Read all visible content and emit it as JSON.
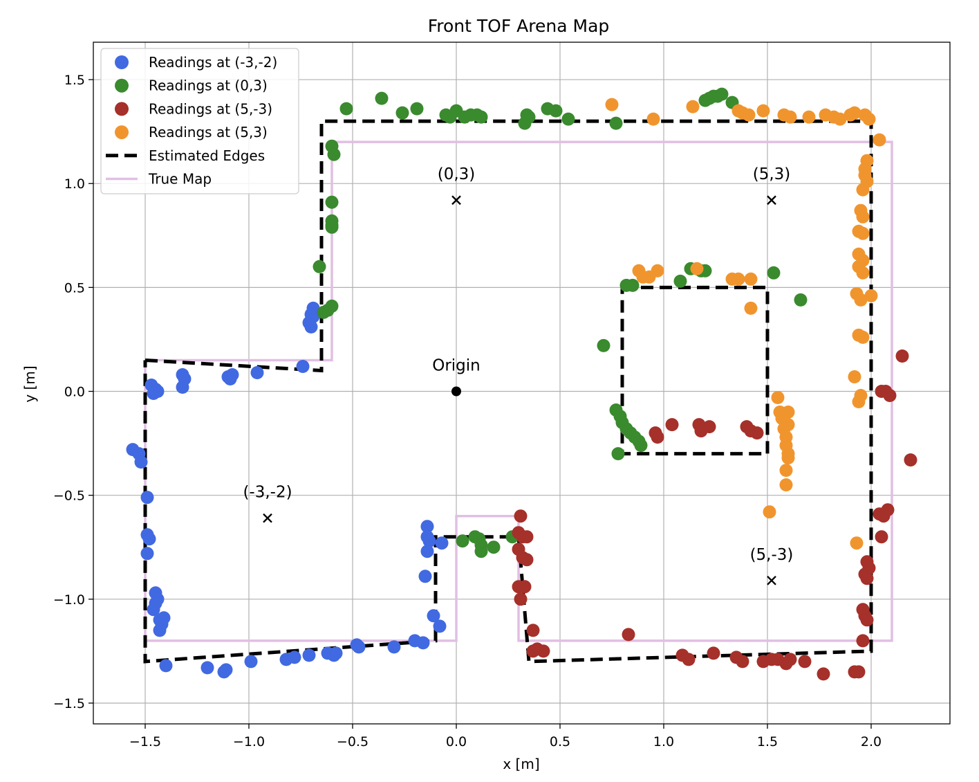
{
  "chart_data": {
    "type": "scatter",
    "title": "Front TOF Arena Map",
    "xlabel": "x [m]",
    "ylabel": "y [m]",
    "xlim": [
      -1.75,
      2.38
    ],
    "ylim": [
      -1.6,
      1.68
    ],
    "x_ticks": [
      {
        "value": -1.5,
        "label": "−1.5"
      },
      {
        "value": -1.0,
        "label": "−1.0"
      },
      {
        "value": -0.5,
        "label": "−0.5"
      },
      {
        "value": 0.0,
        "label": "0.0"
      },
      {
        "value": 0.5,
        "label": "0.5"
      },
      {
        "value": 1.0,
        "label": "1.0"
      },
      {
        "value": 1.5,
        "label": "1.5"
      },
      {
        "value": 2.0,
        "label": "2.0"
      }
    ],
    "y_ticks": [
      {
        "value": -1.5,
        "label": "−1.5"
      },
      {
        "value": -1.0,
        "label": "−1.0"
      },
      {
        "value": -0.5,
        "label": "−0.5"
      },
      {
        "value": 0.0,
        "label": "0.0"
      },
      {
        "value": 0.5,
        "label": "0.5"
      },
      {
        "value": 1.0,
        "label": "1.0"
      },
      {
        "value": 1.5,
        "label": "1.5"
      }
    ],
    "grid": true,
    "legend_position": "top-left",
    "series": [
      {
        "name": "Readings at (-3,-2)",
        "kind": "scatter",
        "color": "#4169e1",
        "points": [
          [
            -1.47,
            0.03
          ],
          [
            -1.45,
            0.01
          ],
          [
            -1.46,
            -0.01
          ],
          [
            -1.44,
            0.0
          ],
          [
            -1.32,
            0.08
          ],
          [
            -1.31,
            0.06
          ],
          [
            -1.32,
            0.02
          ],
          [
            -1.1,
            0.07
          ],
          [
            -1.08,
            0.08
          ],
          [
            -1.09,
            0.06
          ],
          [
            -0.96,
            0.09
          ],
          [
            -0.74,
            0.12
          ],
          [
            -0.69,
            0.4
          ],
          [
            -0.7,
            0.37
          ],
          [
            -0.71,
            0.33
          ],
          [
            -0.7,
            0.31
          ],
          [
            -0.69,
            0.36
          ],
          [
            -1.56,
            -0.28
          ],
          [
            -1.53,
            -0.3
          ],
          [
            -1.52,
            -0.34
          ],
          [
            -1.49,
            -0.51
          ],
          [
            -1.49,
            -0.69
          ],
          [
            -1.48,
            -0.71
          ],
          [
            -1.49,
            -0.78
          ],
          [
            -1.45,
            -0.97
          ],
          [
            -1.44,
            -1.0
          ],
          [
            -1.45,
            -1.02
          ],
          [
            -1.46,
            -1.05
          ],
          [
            -1.43,
            -1.1
          ],
          [
            -1.42,
            -1.12
          ],
          [
            -1.41,
            -1.09
          ],
          [
            -1.43,
            -1.15
          ],
          [
            -1.4,
            -1.32
          ],
          [
            -1.2,
            -1.33
          ],
          [
            -1.12,
            -1.35
          ],
          [
            -1.11,
            -1.34
          ],
          [
            -0.99,
            -1.3
          ],
          [
            -0.82,
            -1.29
          ],
          [
            -0.78,
            -1.28
          ],
          [
            -0.71,
            -1.27
          ],
          [
            -0.62,
            -1.26
          ],
          [
            -0.59,
            -1.27
          ],
          [
            -0.58,
            -1.26
          ],
          [
            -0.48,
            -1.22
          ],
          [
            -0.47,
            -1.23
          ],
          [
            -0.3,
            -1.23
          ],
          [
            -0.2,
            -1.2
          ],
          [
            -0.16,
            -1.21
          ],
          [
            -0.14,
            -0.65
          ],
          [
            -0.14,
            -0.7
          ],
          [
            -0.13,
            -0.72
          ],
          [
            -0.14,
            -0.77
          ],
          [
            -0.15,
            -0.89
          ],
          [
            -0.11,
            -1.08
          ],
          [
            -0.07,
            -0.73
          ],
          [
            -0.08,
            -1.13
          ]
        ]
      },
      {
        "name": "Readings at (0,3)",
        "kind": "scatter",
        "color": "#3a8a2e",
        "points": [
          [
            -0.53,
            1.36
          ],
          [
            -0.36,
            1.41
          ],
          [
            -0.26,
            1.34
          ],
          [
            -0.19,
            1.36
          ],
          [
            -0.05,
            1.33
          ],
          [
            -0.03,
            1.32
          ],
          [
            0.0,
            1.35
          ],
          [
            0.04,
            1.32
          ],
          [
            0.07,
            1.33
          ],
          [
            0.1,
            1.33
          ],
          [
            0.12,
            1.32
          ],
          [
            0.33,
            1.29
          ],
          [
            0.34,
            1.33
          ],
          [
            0.35,
            1.32
          ],
          [
            0.44,
            1.36
          ],
          [
            0.48,
            1.35
          ],
          [
            0.54,
            1.31
          ],
          [
            0.77,
            1.29
          ],
          [
            1.2,
            1.4
          ],
          [
            1.22,
            1.41
          ],
          [
            1.24,
            1.42
          ],
          [
            1.26,
            1.42
          ],
          [
            1.28,
            1.43
          ],
          [
            1.33,
            1.39
          ],
          [
            -0.6,
            1.18
          ],
          [
            -0.59,
            1.14
          ],
          [
            -0.6,
            0.91
          ],
          [
            -0.6,
            0.82
          ],
          [
            -0.6,
            0.8
          ],
          [
            -0.6,
            0.79
          ],
          [
            -0.66,
            0.6
          ],
          [
            -0.6,
            0.41
          ],
          [
            -0.62,
            0.39
          ],
          [
            -0.64,
            0.38
          ],
          [
            0.71,
            0.22
          ],
          [
            0.82,
            0.51
          ],
          [
            0.85,
            0.51
          ],
          [
            1.08,
            0.53
          ],
          [
            1.13,
            0.59
          ],
          [
            1.18,
            0.58
          ],
          [
            1.2,
            0.58
          ],
          [
            1.53,
            0.57
          ],
          [
            1.66,
            0.44
          ],
          [
            0.77,
            -0.09
          ],
          [
            0.79,
            -0.12
          ],
          [
            0.8,
            -0.15
          ],
          [
            0.82,
            -0.18
          ],
          [
            0.84,
            -0.2
          ],
          [
            0.86,
            -0.22
          ],
          [
            0.88,
            -0.24
          ],
          [
            0.89,
            -0.26
          ],
          [
            0.78,
            -0.3
          ],
          [
            0.03,
            -0.72
          ],
          [
            0.09,
            -0.7
          ],
          [
            0.11,
            -0.71
          ],
          [
            0.12,
            -0.74
          ],
          [
            0.12,
            -0.77
          ],
          [
            0.18,
            -0.75
          ],
          [
            0.27,
            -0.7
          ]
        ]
      },
      {
        "name": "Readings at (5,-3)",
        "kind": "scatter",
        "color": "#a6302a",
        "points": [
          [
            0.31,
            -0.6
          ],
          [
            0.3,
            -0.68
          ],
          [
            0.32,
            -0.7
          ],
          [
            0.34,
            -0.7
          ],
          [
            0.3,
            -0.76
          ],
          [
            0.32,
            -0.8
          ],
          [
            0.34,
            -0.81
          ],
          [
            0.3,
            -0.94
          ],
          [
            0.31,
            -1.0
          ],
          [
            0.33,
            -0.94
          ],
          [
            0.37,
            -1.15
          ],
          [
            0.37,
            -1.25
          ],
          [
            0.39,
            -1.24
          ],
          [
            0.42,
            -1.25
          ],
          [
            0.83,
            -1.17
          ],
          [
            0.96,
            -0.2
          ],
          [
            0.97,
            -0.22
          ],
          [
            1.04,
            -0.16
          ],
          [
            1.17,
            -0.16
          ],
          [
            1.18,
            -0.19
          ],
          [
            1.22,
            -0.17
          ],
          [
            1.4,
            -0.17
          ],
          [
            1.42,
            -0.19
          ],
          [
            1.45,
            -0.2
          ],
          [
            1.58,
            -0.12
          ],
          [
            1.09,
            -1.27
          ],
          [
            1.12,
            -1.29
          ],
          [
            1.24,
            -1.26
          ],
          [
            1.35,
            -1.28
          ],
          [
            1.38,
            -1.3
          ],
          [
            1.48,
            -1.3
          ],
          [
            1.52,
            -1.29
          ],
          [
            1.55,
            -1.29
          ],
          [
            1.59,
            -1.31
          ],
          [
            1.61,
            -1.29
          ],
          [
            1.68,
            -1.3
          ],
          [
            1.77,
            -1.36
          ],
          [
            1.92,
            -1.35
          ],
          [
            1.94,
            -1.35
          ],
          [
            2.15,
            0.17
          ],
          [
            2.05,
            0.0
          ],
          [
            2.07,
            0.0
          ],
          [
            2.09,
            -0.02
          ],
          [
            2.19,
            -0.33
          ],
          [
            2.04,
            -0.59
          ],
          [
            2.06,
            -0.6
          ],
          [
            2.08,
            -0.57
          ],
          [
            2.05,
            -0.7
          ],
          [
            1.98,
            -0.82
          ],
          [
            1.99,
            -0.85
          ],
          [
            1.97,
            -0.88
          ],
          [
            1.98,
            -0.9
          ],
          [
            1.96,
            -1.05
          ],
          [
            1.97,
            -1.08
          ],
          [
            1.98,
            -1.1
          ],
          [
            1.96,
            -1.2
          ]
        ]
      },
      {
        "name": "Readings at (5,3)",
        "kind": "scatter",
        "color": "#f0952e",
        "points": [
          [
            0.75,
            1.38
          ],
          [
            0.95,
            1.31
          ],
          [
            1.14,
            1.37
          ],
          [
            1.36,
            1.35
          ],
          [
            1.38,
            1.34
          ],
          [
            1.41,
            1.33
          ],
          [
            1.48,
            1.35
          ],
          [
            1.58,
            1.33
          ],
          [
            1.61,
            1.32
          ],
          [
            1.7,
            1.32
          ],
          [
            1.78,
            1.33
          ],
          [
            1.82,
            1.32
          ],
          [
            1.85,
            1.31
          ],
          [
            1.9,
            1.33
          ],
          [
            1.92,
            1.34
          ],
          [
            1.97,
            1.33
          ],
          [
            1.99,
            1.31
          ],
          [
            2.04,
            1.21
          ],
          [
            1.98,
            1.11
          ],
          [
            1.97,
            1.07
          ],
          [
            1.97,
            1.04
          ],
          [
            1.98,
            1.01
          ],
          [
            1.96,
            0.97
          ],
          [
            1.95,
            0.87
          ],
          [
            1.96,
            0.84
          ],
          [
            1.94,
            0.77
          ],
          [
            1.96,
            0.76
          ],
          [
            1.94,
            0.66
          ],
          [
            1.96,
            0.63
          ],
          [
            1.94,
            0.6
          ],
          [
            1.96,
            0.57
          ],
          [
            1.93,
            0.47
          ],
          [
            1.95,
            0.44
          ],
          [
            2.0,
            0.46
          ],
          [
            1.94,
            0.27
          ],
          [
            1.96,
            0.26
          ],
          [
            1.92,
            0.07
          ],
          [
            1.95,
            -0.02
          ],
          [
            1.94,
            -0.05
          ],
          [
            1.93,
            -0.73
          ],
          [
            0.88,
            0.58
          ],
          [
            0.9,
            0.55
          ],
          [
            0.93,
            0.55
          ],
          [
            0.97,
            0.58
          ],
          [
            1.16,
            0.59
          ],
          [
            1.33,
            0.54
          ],
          [
            1.36,
            0.54
          ],
          [
            1.42,
            0.54
          ],
          [
            1.42,
            0.4
          ],
          [
            1.51,
            -0.58
          ],
          [
            1.55,
            -0.03
          ],
          [
            1.56,
            -0.1
          ],
          [
            1.57,
            -0.13
          ],
          [
            1.58,
            -0.18
          ],
          [
            1.59,
            -0.22
          ],
          [
            1.6,
            -0.1
          ],
          [
            1.59,
            -0.26
          ],
          [
            1.6,
            -0.3
          ],
          [
            1.6,
            -0.32
          ],
          [
            1.59,
            -0.38
          ],
          [
            1.59,
            -0.45
          ],
          [
            1.6,
            -0.16
          ]
        ]
      },
      {
        "name": "Estimated Edges",
        "kind": "line",
        "color": "#000000",
        "style": "dashed",
        "polylines": [
          [
            [
              -1.5,
              0.15
            ],
            [
              -0.65,
              0.1
            ],
            [
              -0.65,
              1.3
            ],
            [
              2.0,
              1.3
            ],
            [
              2.0,
              -1.25
            ],
            [
              0.35,
              -1.3
            ],
            [
              0.3,
              -0.7
            ],
            [
              -0.1,
              -0.7
            ],
            [
              -0.1,
              -1.2
            ],
            [
              -1.5,
              -1.3
            ],
            [
              -1.5,
              0.15
            ]
          ],
          [
            [
              0.8,
              0.5
            ],
            [
              1.5,
              0.5
            ],
            [
              1.5,
              -0.3
            ],
            [
              0.8,
              -0.3
            ],
            [
              0.8,
              0.5
            ]
          ]
        ]
      },
      {
        "name": "True Map",
        "kind": "line",
        "color": "#e1bfe3",
        "style": "solid",
        "polylines": [
          [
            [
              -1.5,
              0.15
            ],
            [
              -0.6,
              0.15
            ],
            [
              -0.6,
              1.2
            ],
            [
              2.1,
              1.2
            ],
            [
              2.1,
              -1.2
            ],
            [
              0.3,
              -1.2
            ],
            [
              0.3,
              -0.6
            ],
            [
              0.0,
              -0.6
            ],
            [
              0.0,
              -1.2
            ],
            [
              -1.5,
              -1.2
            ],
            [
              -1.5,
              0.15
            ]
          ]
        ]
      }
    ],
    "markers": [
      {
        "label": "(0,3)",
        "x": 0.0,
        "y": 0.92,
        "shape": "x"
      },
      {
        "label": "(5,3)",
        "x": 1.52,
        "y": 0.92,
        "shape": "x"
      },
      {
        "label": "(-3,-2)",
        "x": -0.91,
        "y": -0.61,
        "shape": "x"
      },
      {
        "label": "(5,-3)",
        "x": 1.52,
        "y": -0.91,
        "shape": "x"
      },
      {
        "label": "Origin",
        "x": 0.0,
        "y": 0.0,
        "shape": "dot"
      }
    ]
  }
}
